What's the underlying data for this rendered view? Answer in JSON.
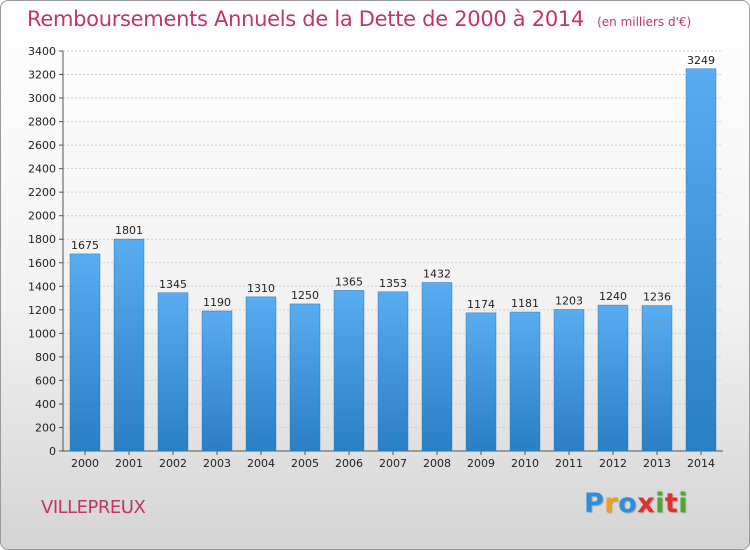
{
  "header": {
    "title": "Remboursements Annuels de la Dette de 2000 à 2014",
    "unit": "(en milliers d'€)"
  },
  "footer": {
    "city": "VILLEPREUX",
    "logo": "Proxiti"
  },
  "colors": {
    "title": "#c0356a",
    "bar_top": "#5aacf0",
    "bar_bottom": "#2a7ec4",
    "logo_letters": [
      "#2e8fd8",
      "#e8a020",
      "#2e8fd8",
      "#e03030",
      "#4aa830",
      "#e03030",
      "#4aa830"
    ]
  },
  "chart_data": {
    "type": "bar",
    "title": "Remboursements Annuels de la Dette de 2000 à 2014",
    "categories": [
      "2000",
      "2001",
      "2002",
      "2003",
      "2004",
      "2005",
      "2006",
      "2007",
      "2008",
      "2009",
      "2010",
      "2011",
      "2012",
      "2013",
      "2014"
    ],
    "values": [
      1675,
      1801,
      1345,
      1190,
      1310,
      1250,
      1365,
      1353,
      1432,
      1174,
      1181,
      1203,
      1240,
      1236,
      3249
    ],
    "yticks": [
      0,
      200,
      400,
      600,
      800,
      1000,
      1200,
      1400,
      1600,
      1800,
      2000,
      2200,
      2400,
      2600,
      2800,
      3000,
      3200,
      3400
    ],
    "ylim": [
      0,
      3400
    ],
    "grid": true,
    "xlabel": "",
    "ylabel": ""
  }
}
